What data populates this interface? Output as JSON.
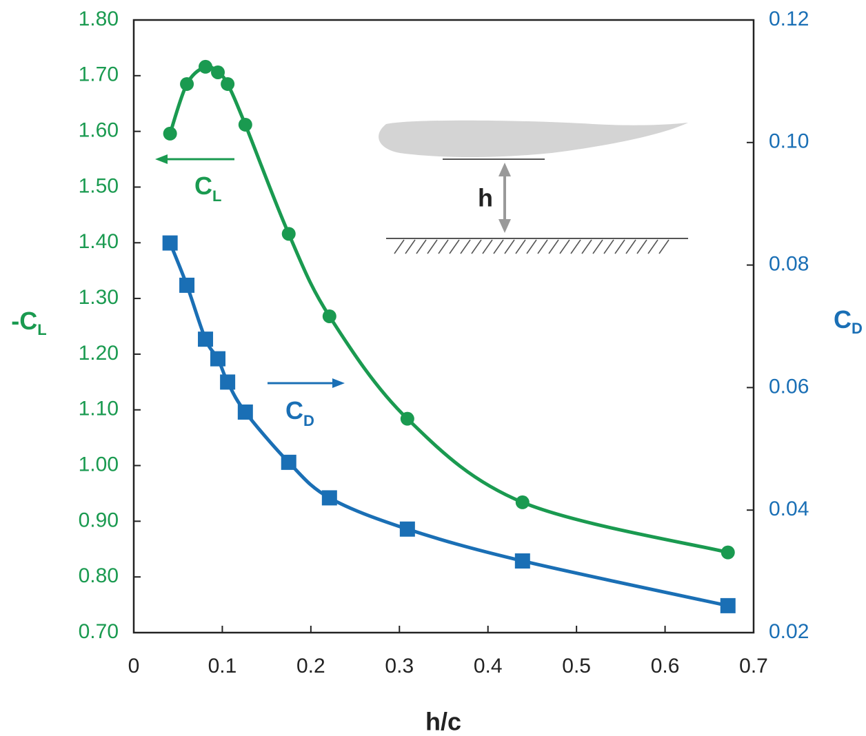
{
  "chart_data": {
    "type": "line",
    "x_label": "h/c",
    "y_label": {
      "text": "-C",
      "sub": "L"
    },
    "y2_label": {
      "text": "C",
      "sub": "D"
    },
    "inset_label": "h",
    "x": [
      0.041,
      0.06,
      0.081,
      0.095,
      0.106,
      0.126,
      0.175,
      0.221,
      0.309,
      0.439,
      0.671
    ],
    "series": [
      {
        "name": "C",
        "name_sub": "L",
        "color": "#1a9a50",
        "marker": "circle",
        "axis": "y",
        "values": [
          1.596,
          1.685,
          1.716,
          1.706,
          1.685,
          1.612,
          1.416,
          1.268,
          1.084,
          0.934,
          0.844
        ]
      },
      {
        "name": "C",
        "name_sub": "D",
        "color": "#1a6fb5",
        "marker": "square",
        "axis": "y2",
        "values": [
          0.0836,
          0.0767,
          0.0679,
          0.0647,
          0.0609,
          0.056,
          0.0478,
          0.042,
          0.0369,
          0.0317,
          0.0244
        ]
      }
    ],
    "xlim": [
      0,
      0.7
    ],
    "xticks": [
      0,
      0.1,
      0.2,
      0.3,
      0.4,
      0.5,
      0.6,
      0.7
    ],
    "ylim": [
      0.7,
      1.8
    ],
    "yticks": [
      {
        "value": 0.7,
        "label": "0.70"
      },
      {
        "value": 0.8,
        "label": "0.80"
      },
      {
        "value": 0.9,
        "label": "0.90"
      },
      {
        "value": 1.0,
        "label": "1.00"
      },
      {
        "value": 1.1,
        "label": "1.10"
      },
      {
        "value": 1.2,
        "label": "1.20"
      },
      {
        "value": 1.3,
        "label": "1.30"
      },
      {
        "value": 1.4,
        "label": "1.40"
      },
      {
        "value": 1.5,
        "label": "1.50"
      },
      {
        "value": 1.6,
        "label": "1.60"
      },
      {
        "value": 1.7,
        "label": "1.70"
      },
      {
        "value": 1.8,
        "label": "1.80"
      }
    ],
    "y2lim": [
      0.02,
      0.12
    ],
    "y2ticks": [
      0.02,
      0.04,
      0.06,
      0.08,
      {
        "value": 0.1,
        "label": "0.10"
      },
      0.12
    ]
  }
}
